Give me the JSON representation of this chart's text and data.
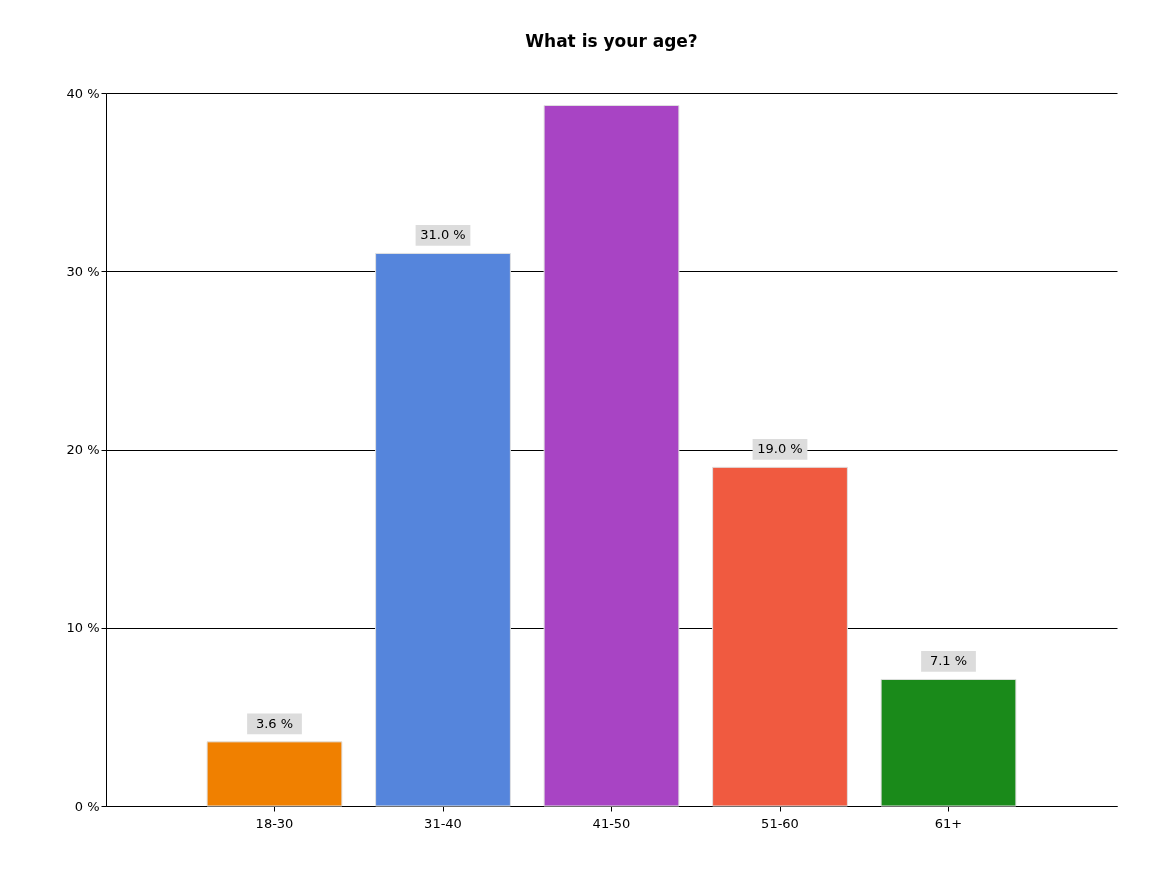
{
  "chart_data": {
    "type": "bar",
    "title": "What is your age?",
    "categories": [
      "18-30",
      "31-40",
      "41-50",
      "51-60",
      "61+"
    ],
    "values": [
      3.6,
      31.0,
      39.3,
      19.0,
      7.1
    ],
    "colors": [
      "#f08000",
      "#5585dc",
      "#a844c4",
      "#f05a40",
      "#1a8a1a"
    ],
    "value_labels": [
      "3.6 %",
      "31.0 %",
      null,
      "19.0 %",
      "7.1 %"
    ],
    "ylim": [
      0,
      40
    ],
    "yticks": [
      {
        "value": 0,
        "label": "0 %"
      },
      {
        "value": 10,
        "label": "10 %"
      },
      {
        "value": 20,
        "label": "20 %"
      },
      {
        "value": 30,
        "label": "30 %"
      },
      {
        "value": 40,
        "label": "40 %"
      }
    ],
    "grid": "y"
  }
}
